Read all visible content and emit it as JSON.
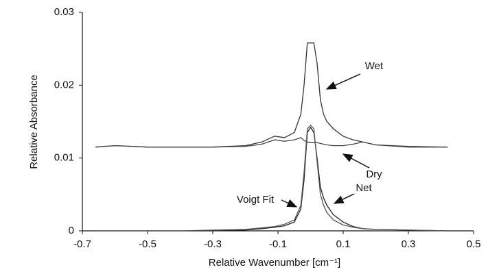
{
  "chart_data": {
    "type": "line",
    "x_label": "Relative Wavenumber [cm⁻¹]",
    "y_label": "Relative Absorbance",
    "x": [
      -0.66,
      -0.6,
      -0.5,
      -0.4,
      -0.3,
      -0.2,
      -0.15,
      -0.11,
      -0.08,
      -0.05,
      -0.03,
      -0.02,
      -0.01,
      0,
      0.01,
      0.02,
      0.03,
      0.04,
      0.05,
      0.07,
      0.1,
      0.13,
      0.16,
      0.2,
      0.3,
      0.42
    ],
    "series": [
      {
        "name": "Wet",
        "color": "#333333",
        "values": [
          0.0115,
          0.0117,
          0.0115,
          0.0115,
          0.0115,
          0.0117,
          0.0122,
          0.013,
          0.0128,
          0.0135,
          0.016,
          0.02,
          0.0258,
          0.0258,
          0.0258,
          0.023,
          0.018,
          0.016,
          0.015,
          0.014,
          0.013,
          0.0125,
          0.0122,
          0.0118,
          0.0115,
          0.0115
        ]
      },
      {
        "name": "Dry",
        "color": "#444444",
        "values": [
          0.0115,
          0.0117,
          0.0115,
          0.0115,
          0.0115,
          0.0116,
          0.0119,
          0.0125,
          0.0123,
          0.0125,
          0.0128,
          0.0124,
          0.0122,
          0.0121,
          0.0121,
          0.0121,
          0.012,
          0.0119,
          0.0118,
          0.0117,
          0.0117,
          0.0119,
          0.0122,
          0.0118,
          0.0116,
          0.0115
        ]
      },
      {
        "name": "Net",
        "color": "#222222",
        "values": [
          0,
          0,
          0,
          0,
          0,
          0.0001,
          0.0003,
          0.0005,
          0.0007,
          0.0012,
          0.003,
          0.007,
          0.0135,
          0.0142,
          0.0135,
          0.01,
          0.006,
          0.0045,
          0.0035,
          0.0022,
          0.0012,
          0.0006,
          0.0003,
          0.0002,
          0.0001,
          0
        ]
      },
      {
        "name": "Voigt Fit",
        "color": "#555555",
        "values": [
          0,
          0,
          0,
          0,
          0.0001,
          0.0002,
          0.0004,
          0.0006,
          0.0009,
          0.0015,
          0.0035,
          0.008,
          0.014,
          0.0145,
          0.014,
          0.0095,
          0.005,
          0.0035,
          0.0025,
          0.0015,
          0.0008,
          0.0005,
          0.0003,
          0.0002,
          0.0001,
          0
        ]
      }
    ],
    "xlim": [
      -0.7,
      0.5
    ],
    "xticks": [
      -0.7,
      -0.5,
      -0.3,
      -0.1,
      0.1,
      0.3,
      0.5
    ],
    "ylim": [
      0,
      0.03
    ],
    "yticks": [
      0,
      0.01,
      0.02,
      0.03
    ],
    "grid": false,
    "legend": false
  }
}
